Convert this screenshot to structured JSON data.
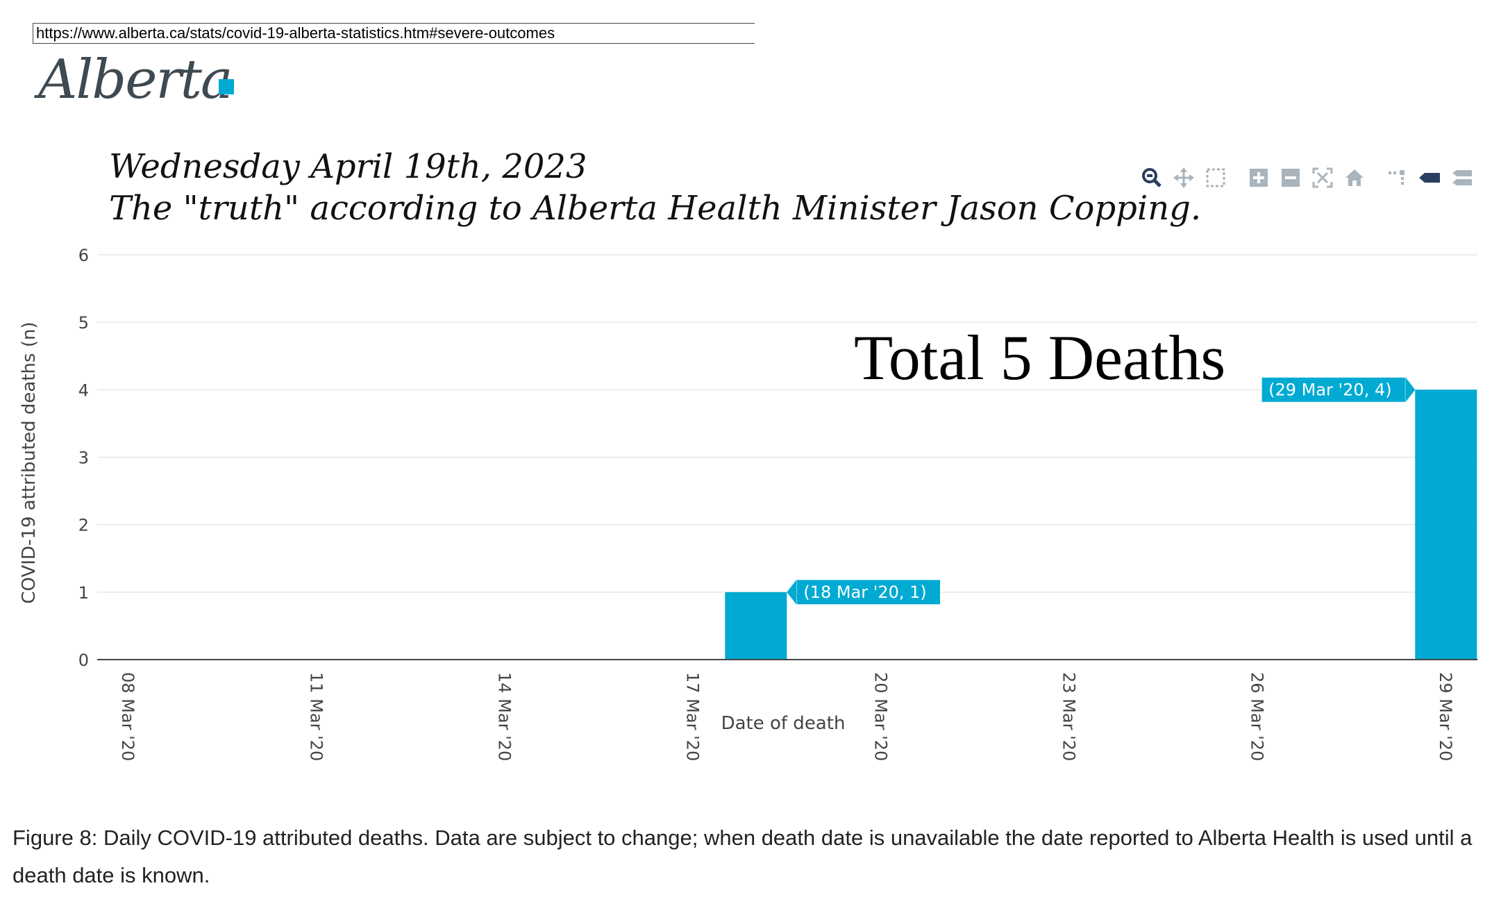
{
  "browser": {
    "url": "https://www.alberta.ca/stats/covid-19-alberta-statistics.htm#severe-outcomes"
  },
  "logo": {
    "text": "Alberta",
    "name": "alberta-logo",
    "accent_color": "#00aad2"
  },
  "headline": {
    "line1": "Wednesday April 19th, 2023",
    "line2": "The \"truth\" according to Alberta Health Minister Jason Copping."
  },
  "annotation": {
    "text": "Total 5 Deaths"
  },
  "toolbar": {
    "icons": [
      "zoom-icon",
      "pan-icon",
      "box-select-icon",
      "zoom-in-icon",
      "zoom-out-icon",
      "autoscale-icon",
      "reset-axes-icon",
      "spike-lines-icon",
      "hover-closest-icon",
      "hover-compare-icon"
    ]
  },
  "chart_data": {
    "type": "bar",
    "xlabel": "Date of death",
    "ylabel": "COVID-19 attributed deaths (n)",
    "ylim": [
      0,
      6
    ],
    "yticks": [
      "0",
      "1",
      "2",
      "3",
      "4",
      "5",
      "6"
    ],
    "x_domain_days": [
      7.5,
      29.5
    ],
    "xticks": [
      {
        "day": 8,
        "label": "08 Mar '20"
      },
      {
        "day": 11,
        "label": "11 Mar '20"
      },
      {
        "day": 14,
        "label": "14 Mar '20"
      },
      {
        "day": 17,
        "label": "17 Mar '20"
      },
      {
        "day": 20,
        "label": "20 Mar '20"
      },
      {
        "day": 23,
        "label": "23 Mar '20"
      },
      {
        "day": 26,
        "label": "26 Mar '20"
      },
      {
        "day": 29,
        "label": "29 Mar '20"
      }
    ],
    "bars": [
      {
        "day": 18,
        "date": "18 Mar '20",
        "value": 1,
        "hover_label": "(18 Mar '20, 1)"
      },
      {
        "day": 29,
        "date": "29 Mar '20",
        "value": 4,
        "hover_label": "(29 Mar '20, 4)"
      }
    ],
    "bar_color": "#00aad2",
    "grid": true
  },
  "caption": {
    "text": "Figure 8: Daily COVID-19 attributed deaths. Data are subject to change; when death date is unavailable the date reported to Alberta Health is used until a death date is known."
  }
}
